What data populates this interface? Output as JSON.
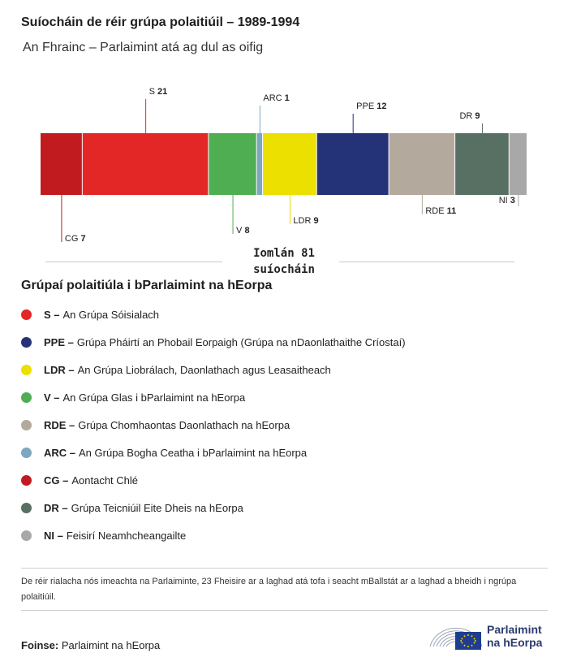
{
  "title": "Suíocháin de réir grúpa polaitiúil – 1989-1994",
  "subtitle": "An Fhrainc – Parlaimint atá ag dul as oifig",
  "chart_data": {
    "type": "bar",
    "orientation": "horizontal-stacked",
    "categories": [
      "CG",
      "S",
      "V",
      "ARC",
      "LDR",
      "PPE",
      "RDE",
      "DR",
      "NI"
    ],
    "values": [
      7,
      21,
      8,
      1,
      9,
      12,
      11,
      9,
      3
    ],
    "label_position": [
      "below",
      "above",
      "below",
      "above",
      "below",
      "above",
      "below",
      "above",
      "below"
    ],
    "total_label": "Iomlán 81 suíocháin"
  },
  "colors": {
    "CG": "#c21b1f",
    "S": "#e32727",
    "V": "#4fae52",
    "ARC": "#7da7c0",
    "LDR": "#ece000",
    "PPE": "#243278",
    "RDE": "#b3aa9d",
    "DR": "#587064",
    "NI": "#a8a8a8"
  },
  "legend": {
    "title": "Grúpaí polaitiúla i bParlaimint na hEorpa",
    "items": [
      {
        "code": "S –",
        "text": "An Grúpa Sóisialach",
        "color": "#e32727"
      },
      {
        "code": "PPE –",
        "text": "Grúpa Pháirtí an Phobail Eorpaigh (Grúpa na nDaonlathaithe Críostaí)",
        "color": "#243278"
      },
      {
        "code": "LDR –",
        "text": "An Grúpa Liobrálach, Daonlathach agus Leasaitheach",
        "color": "#ece000"
      },
      {
        "code": "V –",
        "text": "An Grúpa Glas i bParlaimint na hEorpa",
        "color": "#4fae52"
      },
      {
        "code": "RDE –",
        "text": "Grúpa Chomhaontas Daonlathach na hEorpa",
        "color": "#b3aa9d"
      },
      {
        "code": "ARC –",
        "text": "An Grúpa Bogha Ceatha i bParlaimint na hEorpa",
        "color": "#7da7c0"
      },
      {
        "code": "CG –",
        "text": "Aontacht Chlé",
        "color": "#c21b1f"
      },
      {
        "code": "DR –",
        "text": "Grúpa Teicniúil Eite Dheis na hEorpa",
        "color": "#587064"
      },
      {
        "code": "NI –",
        "text": "Feisirí Neamhcheangailte",
        "color": "#a8a8a8"
      }
    ]
  },
  "note": "De réir rialacha nós imeachta na Parlaiminte, 23 Fheisire ar a laghad atá tofa i seacht mBallstát ar a laghad a bheidh i ngrúpa polaitiúil.",
  "source": {
    "label": "Foinse:",
    "text": "Parlaimint na hEorpa"
  },
  "logo": {
    "line1": "Parlaimint",
    "line2": "na hEorpa",
    "icon": "eu-hemicycle-flag-icon"
  }
}
